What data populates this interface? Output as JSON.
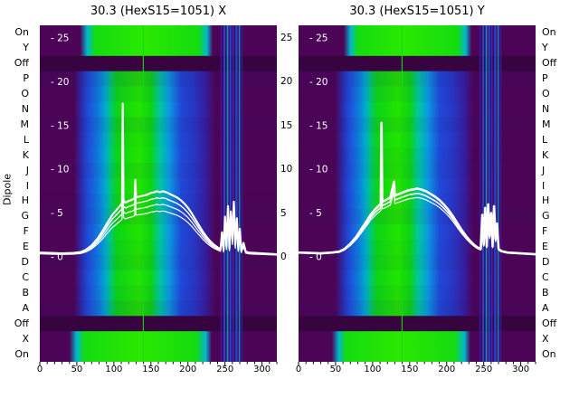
{
  "figure": {
    "ylabel_left": "Dipole",
    "colors": {
      "background": "#ffffff",
      "line": "#ffffff",
      "text": "#000000",
      "purple": "#4c0556",
      "off_purple": "#38043f",
      "blue": "#1f49d8",
      "cyan": "#00a4d4",
      "green": "#14dc10"
    }
  },
  "chart_data": [
    {
      "type": "heatmap",
      "title": "30.3 (HexS15=1051) X",
      "x_range": [
        0,
        320
      ],
      "x_major_ticks": [
        0,
        50,
        100,
        150,
        200,
        250,
        300
      ],
      "x_minor_step": 10,
      "row_labels": [
        "On",
        "Y",
        "Off",
        "P",
        "O",
        "N",
        "M",
        "L",
        "K",
        "J",
        "I",
        "H",
        "G",
        "F",
        "E",
        "D",
        "C",
        "B",
        "A",
        "Off",
        "X",
        "On"
      ],
      "row_types": [
        "band_top",
        "band_top",
        "off",
        "main",
        "main",
        "main",
        "main",
        "main",
        "main",
        "main",
        "main",
        "main",
        "main",
        "main",
        "main",
        "main",
        "main",
        "main",
        "main",
        "off",
        "band_bottom",
        "band_bottom"
      ],
      "row_shade": [
        0,
        0,
        0,
        0.12,
        0.05,
        0,
        0.08,
        0.02,
        0,
        0.05,
        0,
        0.03,
        0.07,
        0,
        0.02,
        0.06,
        0,
        0.04,
        0.1,
        0,
        0,
        0
      ],
      "value_axis": {
        "ticks": [
          25,
          20,
          15,
          10,
          5,
          0
        ],
        "min": 0,
        "max": 25
      },
      "right_side_ticks": [
        25,
        20,
        15,
        10,
        5,
        0
      ],
      "heatmap": {
        "off_color": "#38043f",
        "shade_color": "#2a0a60",
        "main_stops": [
          [
            0,
            "#4c0556"
          ],
          [
            0.145,
            "#4c0556"
          ],
          [
            0.17,
            "#31249c"
          ],
          [
            0.2,
            "#1f49d8"
          ],
          [
            0.245,
            "#1178dc"
          ],
          [
            0.275,
            "#00a8d0"
          ],
          [
            0.3,
            "#00c878"
          ],
          [
            0.325,
            "#0cd414"
          ],
          [
            0.42,
            "#22e400"
          ],
          [
            0.47,
            "#0cd414"
          ],
          [
            0.505,
            "#00c89c"
          ],
          [
            0.545,
            "#0a9ae0"
          ],
          [
            0.595,
            "#1f49d8"
          ],
          [
            0.65,
            "#2737c4"
          ],
          [
            0.7,
            "#371d9e"
          ],
          [
            0.74,
            "#4c0556"
          ],
          [
            1,
            "#4c0556"
          ]
        ],
        "band_top_stops": [
          [
            0,
            "#4c0556"
          ],
          [
            0.17,
            "#4c0556"
          ],
          [
            0.2,
            "#00b8d0"
          ],
          [
            0.235,
            "#14dc10"
          ],
          [
            0.44,
            "#2ae800"
          ],
          [
            0.67,
            "#14dc10"
          ],
          [
            0.705,
            "#00b8d0"
          ],
          [
            0.73,
            "#4c0556"
          ],
          [
            1,
            "#4c0556"
          ]
        ],
        "band_bottom_stops": [
          [
            0,
            "#4c0556"
          ],
          [
            0.125,
            "#4c0556"
          ],
          [
            0.155,
            "#00b8d0"
          ],
          [
            0.19,
            "#14dc10"
          ],
          [
            0.42,
            "#2ae800"
          ],
          [
            0.66,
            "#14dc10"
          ],
          [
            0.7,
            "#00b8d0"
          ],
          [
            0.725,
            "#4c0556"
          ],
          [
            1,
            "#4c0556"
          ]
        ],
        "stripes": [
          {
            "x": 244,
            "w": 2,
            "color": "#3a1a9c",
            "opacity": 0.9
          },
          {
            "x": 248,
            "w": 2.5,
            "color": "#1f49d8",
            "opacity": 0.95
          },
          {
            "x": 252.5,
            "w": 2,
            "color": "#00a4d4",
            "opacity": 0.9
          },
          {
            "x": 256,
            "w": 2.5,
            "color": "#1f49d8",
            "opacity": 0.95
          },
          {
            "x": 260,
            "w": 2,
            "color": "#2636c4",
            "opacity": 0.9
          },
          {
            "x": 264,
            "w": 3,
            "color": "#1f49d8",
            "opacity": 0.9
          },
          {
            "x": 268.5,
            "w": 2,
            "color": "#00a4d4",
            "opacity": 0.8
          },
          {
            "x": 272,
            "w": 2,
            "color": "#3a1a9c",
            "opacity": 0.85
          }
        ],
        "vlines": [
          {
            "x": 139,
            "w": 1.5,
            "color": "#14dc10",
            "opacity": 0.9
          }
        ]
      },
      "series": {
        "x": [
          0,
          15,
          30,
          45,
          55,
          62,
          70,
          78,
          85,
          92,
          98,
          104,
          108,
          110,
          111,
          112,
          113,
          116,
          120,
          124,
          128,
          129,
          130,
          135,
          140,
          145,
          150,
          155,
          158,
          162,
          166,
          170,
          175,
          180,
          185,
          190,
          195,
          200,
          205,
          210,
          215,
          220,
          225,
          230,
          235,
          240,
          244,
          246,
          248,
          250,
          252,
          254,
          256,
          258,
          260,
          262,
          264,
          266,
          268,
          270,
          272,
          275,
          278,
          282,
          290,
          300,
          310,
          320
        ],
        "y": [
          0.5,
          0.45,
          0.4,
          0.45,
          0.55,
          0.8,
          1.3,
          2.1,
          3.0,
          4.0,
          4.8,
          5.4,
          5.8,
          6.0,
          6.2,
          17.5,
          6.4,
          6.2,
          6.4,
          6.5,
          6.7,
          8.8,
          6.8,
          6.9,
          7.0,
          7.1,
          7.3,
          7.4,
          7.5,
          7.4,
          7.5,
          7.4,
          7.2,
          7.0,
          6.8,
          6.5,
          6.1,
          5.6,
          5.0,
          4.3,
          3.6,
          2.9,
          2.3,
          1.8,
          1.4,
          1.1,
          0.9,
          2.8,
          0.8,
          4.6,
          1.2,
          5.8,
          1.0,
          5.2,
          2.0,
          6.3,
          1.4,
          4.4,
          0.9,
          3.2,
          0.7,
          1.6,
          0.6,
          0.5,
          0.45,
          0.4,
          0.35,
          0.3
        ]
      },
      "traces": [
        {
          "scale": 1.0,
          "width": 2.2
        },
        {
          "scale": 0.9,
          "width": 1.4
        },
        {
          "scale": 0.8,
          "width": 1.2
        },
        {
          "scale": 0.7,
          "width": 1.2
        }
      ]
    },
    {
      "type": "heatmap",
      "title": "30.3 (HexS15=1051) Y",
      "x_range": [
        0,
        320
      ],
      "x_major_ticks": [
        0,
        50,
        100,
        150,
        200,
        250,
        300
      ],
      "x_minor_step": 10,
      "row_labels": [
        "On",
        "Y",
        "Off",
        "P",
        "O",
        "N",
        "M",
        "L",
        "K",
        "J",
        "I",
        "H",
        "G",
        "F",
        "E",
        "D",
        "C",
        "B",
        "A",
        "Off",
        "X",
        "On"
      ],
      "row_types": [
        "band_top",
        "band_top",
        "off",
        "main",
        "main",
        "main",
        "main",
        "main",
        "main",
        "main",
        "main",
        "main",
        "main",
        "main",
        "main",
        "main",
        "main",
        "main",
        "main",
        "off",
        "band_bottom",
        "band_bottom"
      ],
      "row_shade": [
        0,
        0,
        0,
        0.1,
        0.04,
        0,
        0.06,
        0,
        0.03,
        0.05,
        0,
        0.02,
        0.07,
        0,
        0.02,
        0.05,
        0,
        0.04,
        0.09,
        0,
        0,
        0
      ],
      "value_axis": {
        "ticks": [
          25,
          20,
          15,
          10,
          5,
          0
        ],
        "min": 0,
        "max": 25
      },
      "right_side_ticks": [],
      "heatmap": {
        "off_color": "#38043f",
        "shade_color": "#2a0a60",
        "main_stops": [
          [
            0,
            "#4c0556"
          ],
          [
            0.155,
            "#4c0556"
          ],
          [
            0.18,
            "#31249c"
          ],
          [
            0.21,
            "#1f49d8"
          ],
          [
            0.25,
            "#1178dc"
          ],
          [
            0.28,
            "#00a8d0"
          ],
          [
            0.305,
            "#00c878"
          ],
          [
            0.33,
            "#0cd414"
          ],
          [
            0.42,
            "#22e400"
          ],
          [
            0.47,
            "#0cd414"
          ],
          [
            0.505,
            "#00c89c"
          ],
          [
            0.545,
            "#0a9ae0"
          ],
          [
            0.595,
            "#1f49d8"
          ],
          [
            0.65,
            "#2737c4"
          ],
          [
            0.7,
            "#371d9e"
          ],
          [
            0.74,
            "#4c0556"
          ],
          [
            1,
            "#4c0556"
          ]
        ],
        "band_top_stops": [
          [
            0,
            "#4c0556"
          ],
          [
            0.19,
            "#4c0556"
          ],
          [
            0.22,
            "#00b8d0"
          ],
          [
            0.25,
            "#14dc10"
          ],
          [
            0.44,
            "#2ae800"
          ],
          [
            0.67,
            "#14dc10"
          ],
          [
            0.705,
            "#00b8d0"
          ],
          [
            0.73,
            "#4c0556"
          ],
          [
            1,
            "#4c0556"
          ]
        ],
        "band_bottom_stops": [
          [
            0,
            "#4c0556"
          ],
          [
            0.14,
            "#4c0556"
          ],
          [
            0.17,
            "#00b8d0"
          ],
          [
            0.2,
            "#14dc10"
          ],
          [
            0.42,
            "#2ae800"
          ],
          [
            0.66,
            "#14dc10"
          ],
          [
            0.7,
            "#00b8d0"
          ],
          [
            0.725,
            "#4c0556"
          ],
          [
            1,
            "#4c0556"
          ]
        ],
        "stripes": [
          {
            "x": 244,
            "w": 2,
            "color": "#3a1a9c",
            "opacity": 0.9
          },
          {
            "x": 248,
            "w": 2.5,
            "color": "#1f49d8",
            "opacity": 0.95
          },
          {
            "x": 252.5,
            "w": 2,
            "color": "#00a4d4",
            "opacity": 0.9
          },
          {
            "x": 256,
            "w": 2.5,
            "color": "#1f49d8",
            "opacity": 0.95
          },
          {
            "x": 260,
            "w": 2,
            "color": "#2636c4",
            "opacity": 0.9
          },
          {
            "x": 264,
            "w": 3,
            "color": "#1f49d8",
            "opacity": 0.9
          },
          {
            "x": 268.5,
            "w": 2,
            "color": "#00a4d4",
            "opacity": 0.8
          },
          {
            "x": 272,
            "w": 2,
            "color": "#3a1a9c",
            "opacity": 0.85
          }
        ],
        "vlines": [
          {
            "x": 139,
            "w": 1.5,
            "color": "#14dc10",
            "opacity": 0.9
          }
        ]
      },
      "series": {
        "x": [
          0,
          15,
          30,
          45,
          55,
          62,
          70,
          78,
          85,
          92,
          98,
          104,
          110,
          111,
          112,
          113,
          118,
          124,
          129,
          130,
          136,
          142,
          148,
          154,
          160,
          166,
          172,
          178,
          184,
          190,
          196,
          202,
          208,
          214,
          220,
          226,
          232,
          238,
          243,
          246,
          248,
          250,
          252,
          254,
          256,
          258,
          260,
          262,
          264,
          266,
          268,
          270,
          273,
          277,
          282,
          290,
          300,
          310,
          320
        ],
        "y": [
          0.5,
          0.45,
          0.4,
          0.5,
          0.6,
          0.9,
          1.5,
          2.3,
          3.2,
          4.1,
          4.9,
          5.5,
          6.0,
          6.1,
          15.3,
          6.3,
          6.5,
          6.8,
          8.6,
          7.0,
          7.2,
          7.4,
          7.6,
          7.7,
          7.8,
          7.7,
          7.5,
          7.2,
          6.9,
          6.5,
          6.0,
          5.4,
          4.7,
          3.9,
          3.1,
          2.4,
          1.8,
          1.3,
          1.0,
          0.9,
          4.8,
          1.4,
          5.6,
          1.2,
          6.0,
          2.4,
          5.0,
          1.2,
          5.8,
          2.0,
          3.8,
          0.9,
          0.7,
          0.6,
          0.5,
          0.45,
          0.4,
          0.35,
          0.3
        ]
      },
      "traces": [
        {
          "scale": 1.0,
          "width": 2.6
        },
        {
          "scale": 0.93,
          "width": 1.6
        },
        {
          "scale": 0.87,
          "width": 1.2
        }
      ]
    }
  ]
}
